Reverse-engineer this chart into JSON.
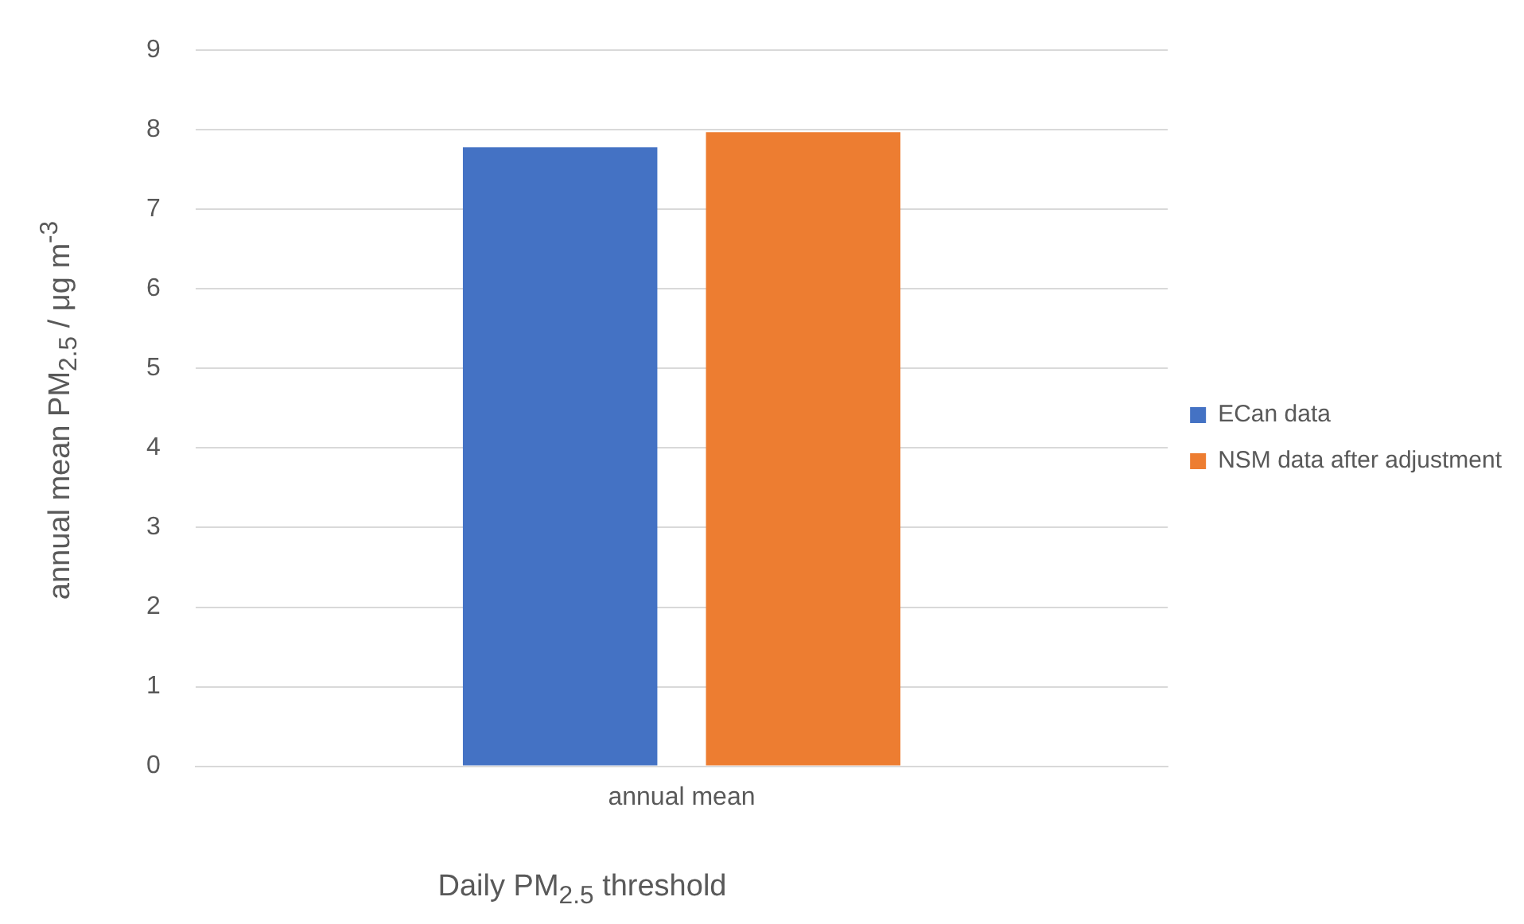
{
  "chart_data": {
    "type": "bar",
    "xlabel": "Daily PM$_{2.5}$ threshold",
    "ylabel": "annual mean PM$_{2.5}$ / μg m$^{-3}$",
    "categories": [
      "annual mean"
    ],
    "series": [
      {
        "name": "ECan data",
        "color": "#4472c4",
        "values": [
          7.78
        ]
      },
      {
        "name": "NSM data after adjustment",
        "color": "#ed7d31",
        "values": [
          7.97
        ]
      }
    ],
    "ylim": [
      0,
      9
    ],
    "yticks": [
      0,
      1,
      2,
      3,
      4,
      5,
      6,
      7,
      8,
      9
    ],
    "grid": "y",
    "legend": "right"
  }
}
